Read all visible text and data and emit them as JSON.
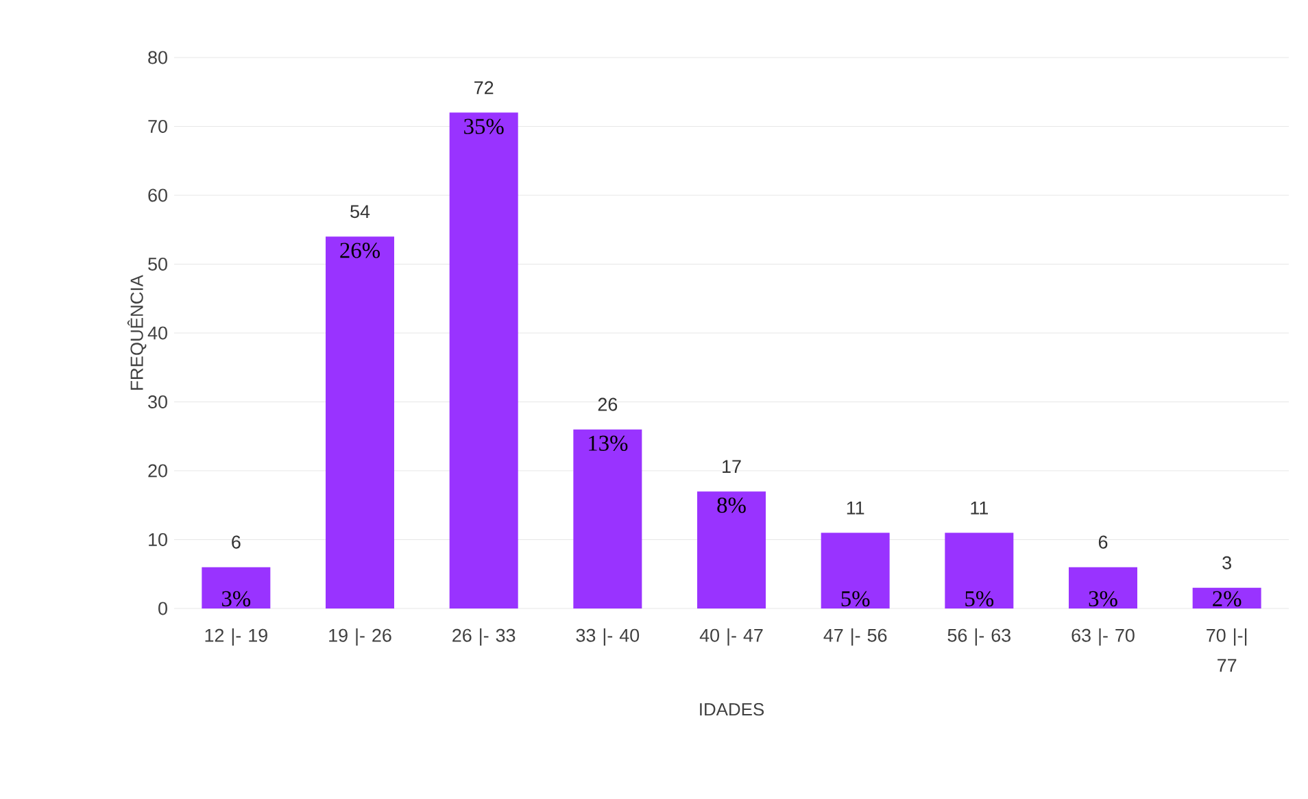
{
  "chart_data": {
    "type": "bar",
    "xlabel": "IDADES",
    "ylabel": "FREQUÊNCIA",
    "categories": [
      "12 |- 19",
      "19 |- 26",
      "26 |- 33",
      "33 |- 40",
      "40 |- 47",
      "47 |- 56",
      "56 |- 63",
      "63 |- 70",
      "70 |-| 77"
    ],
    "values": [
      6,
      54,
      72,
      26,
      17,
      11,
      11,
      6,
      3
    ],
    "color": "#9933ff",
    "ylim": [
      0,
      80
    ],
    "yticks": [
      0,
      10,
      20,
      30,
      40,
      50,
      60,
      70,
      80
    ],
    "grid": "y",
    "data_labels": true,
    "annotations": [
      "3%",
      "26%",
      "35%",
      "13%",
      "8%",
      "5%",
      "5%",
      "3%",
      "2%"
    ]
  }
}
